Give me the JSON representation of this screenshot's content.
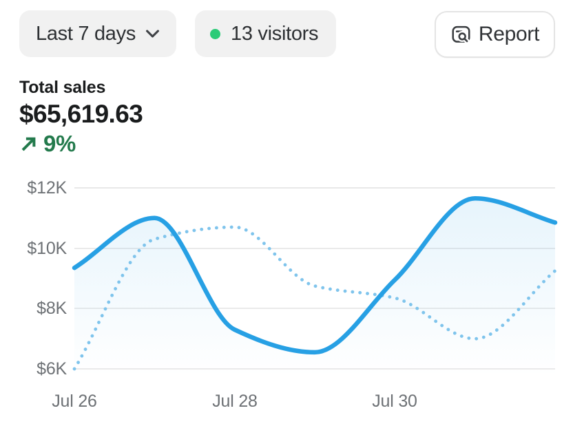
{
  "controls": {
    "date_range": {
      "label": "Last 7 days"
    },
    "visitors": {
      "label": "13 visitors"
    },
    "report": {
      "label": "Report"
    }
  },
  "metric": {
    "title": "Total sales",
    "value": "$65,619.63",
    "change": "9%",
    "change_direction": "up"
  },
  "colors": {
    "accent_line": "#27a0e4",
    "comparison_line": "#7fc4ec",
    "success_text": "#237a4c",
    "live_dot": "#2bcb77",
    "grid_line": "#e3e3e3",
    "axis_text": "#6d7175"
  },
  "chart_data": {
    "type": "line",
    "title": "Total sales",
    "x": [
      "Jul 26",
      "Jul 27",
      "Jul 28",
      "Jul 29",
      "Jul 30",
      "Jul 31",
      "Aug 1"
    ],
    "series": [
      {
        "name": "current_period",
        "style": "solid",
        "color": "#27a0e4",
        "values": [
          9350,
          11000,
          7300,
          6550,
          8950,
          11650,
          10850
        ]
      },
      {
        "name": "previous_period",
        "style": "dotted",
        "color": "#7fc4ec",
        "values": [
          6000,
          10300,
          10700,
          8750,
          8350,
          7000,
          9250
        ]
      }
    ],
    "units": "USD",
    "ylim": [
      6000,
      12000
    ],
    "yticks": [
      "$12K",
      "$10K",
      "$8K",
      "$6K"
    ],
    "xticks_shown": [
      "Jul 26",
      "Jul 28",
      "Jul 30"
    ],
    "grid": "horizontal",
    "legend": "none",
    "area_fill": "gradient under current period line"
  }
}
